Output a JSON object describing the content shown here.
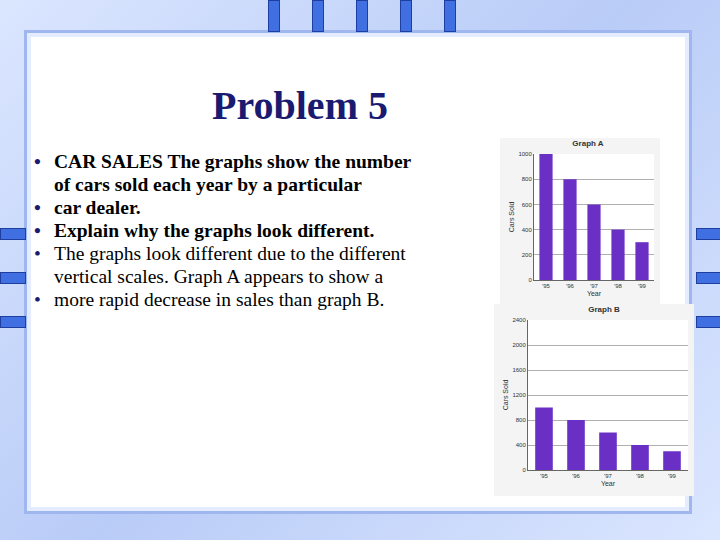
{
  "slide": {
    "title": "Problem 5",
    "question": [
      "CAR SALES The graphs show the number of cars sold each year by a particular",
      "car dealer.",
      "Explain why the graphs look different."
    ],
    "answer": [
      "The graphs look different due to the different vertical scales. Graph A appears to show a",
      "more rapid decrease in sales than graph B."
    ]
  },
  "chart_data": [
    {
      "type": "bar",
      "title": "Graph A",
      "x_label": "Year",
      "y_label": "Cars Sold",
      "categories": [
        "'95",
        "'96",
        "'97",
        "'98",
        "'99"
      ],
      "values": [
        1000,
        800,
        600,
        400,
        300
      ],
      "color": "#6a2fc4",
      "ylim": [
        0,
        1000
      ],
      "yticks": [
        0,
        200,
        400,
        600,
        800,
        1000
      ],
      "grid": true
    },
    {
      "type": "bar",
      "title": "Graph B",
      "x_label": "Year",
      "y_label": "Cars Sold",
      "categories": [
        "'95",
        "'96",
        "'97",
        "'98",
        "'99"
      ],
      "values": [
        1000,
        800,
        600,
        400,
        300
      ],
      "color": "#6a2fc4",
      "ylim": [
        0,
        2400
      ],
      "yticks": [
        0,
        400,
        800,
        1200,
        1600,
        2000,
        2400
      ],
      "grid": true
    }
  ]
}
